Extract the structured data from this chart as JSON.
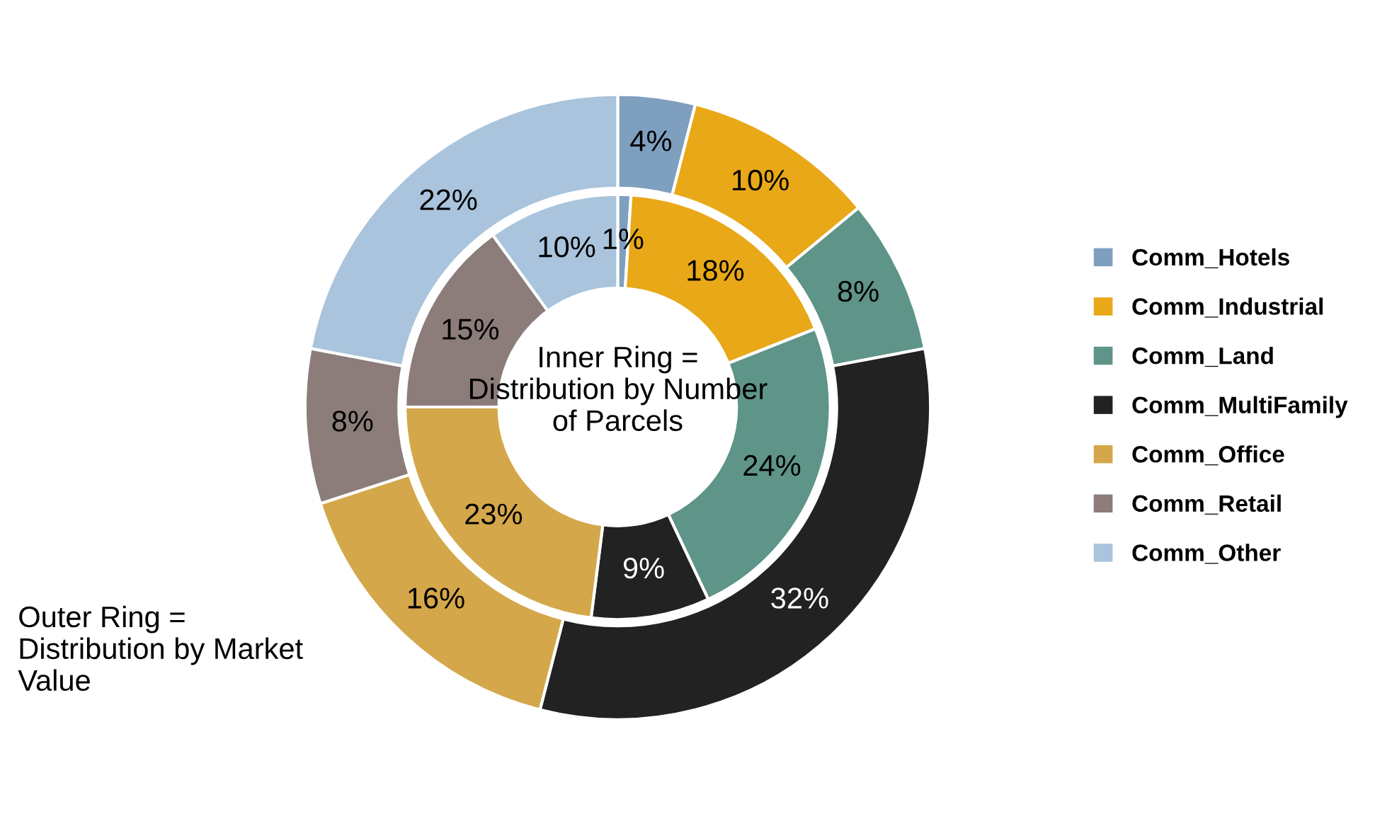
{
  "chart_data": {
    "type": "donut",
    "categories": [
      "Comm_Hotels",
      "Comm_Industrial",
      "Comm_Land",
      "Comm_MultiFamily",
      "Comm_Office",
      "Comm_Retail",
      "Comm_Other"
    ],
    "colors": [
      "#7f9fbf",
      "#e8a817",
      "#5f9488",
      "#222222",
      "#d4a74a",
      "#8c7d7a",
      "#a9c4dc"
    ],
    "series": [
      {
        "values": [
          4,
          10,
          8,
          32,
          16,
          8,
          22
        ],
        "value_labels": [
          "4%",
          "10%",
          "8%",
          "32%",
          "16%",
          "8%",
          "22%"
        ]
      },
      {
        "values": [
          1,
          18,
          24,
          9,
          23,
          15,
          10
        ],
        "value_labels": [
          "1%",
          "18%",
          "24%",
          "9%",
          "23%",
          "15%",
          "10%"
        ]
      }
    ],
    "annotations": [
      "Inner Ring = Distribution by Number of Parcels",
      "Outer Ring = Distribution by Market Value"
    ],
    "legend": "right"
  }
}
